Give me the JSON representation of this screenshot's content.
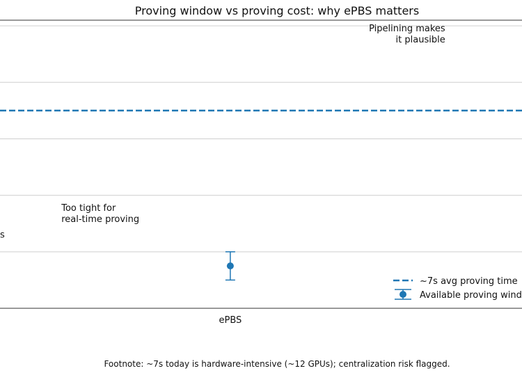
{
  "chart_data": {
    "type": "errorbar",
    "title": "Proving window vs proving cost: why ePBS matters",
    "xlabel": "",
    "ylabel": "",
    "x_visible_range": [
      0.55,
      1.57
    ],
    "ylim": [
      0,
      10.2
    ],
    "categories": [
      {
        "label": "ePBS",
        "x": 1.0
      }
    ],
    "series": [
      {
        "name": "Available proving window",
        "type": "errorbar",
        "color": "#1f77b4",
        "points": [
          {
            "x": 1.0,
            "y": 1.5,
            "low": 1.0,
            "high": 2.0
          }
        ]
      },
      {
        "name": "~7s avg proving time",
        "type": "hline",
        "color": "#1f77b4",
        "style": "dashed",
        "y": 7
      }
    ],
    "gridlines_y": [
      2,
      4,
      6,
      8,
      10
    ],
    "grid": true,
    "annotations": [
      {
        "lines": [
          "Pipelining makes",
          "it plausible"
        ],
        "x": 1.42,
        "y": 9.8,
        "align": "right"
      },
      {
        "lines": [
          "Too tight for",
          "real-time proving"
        ],
        "x": 0.67,
        "y": 3.45,
        "align": "left"
      },
      {
        "lines": [
          "s"
        ],
        "x": 0.55,
        "y": 2.5,
        "align": "left"
      }
    ],
    "legend": {
      "position": "lower-right",
      "entries": [
        {
          "label": "~7s avg proving time",
          "marker": "dashed-line"
        },
        {
          "label": "Available proving window",
          "marker": "errorbar"
        }
      ]
    },
    "footnote": "Footnote: ~7s today is hardware-intensive (~12 GPUs); centralization risk flagged."
  }
}
